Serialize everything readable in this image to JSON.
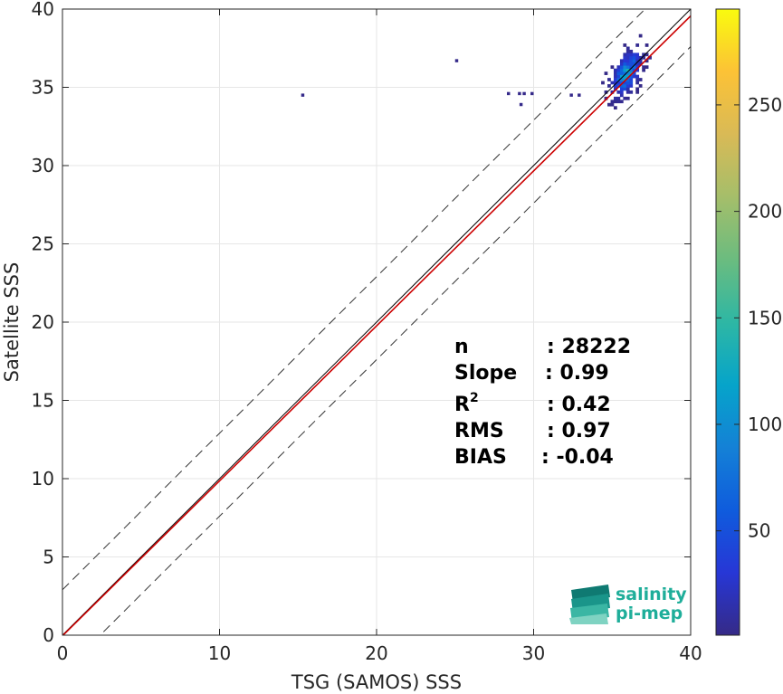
{
  "chart_data": {
    "type": "heatmap",
    "xlabel": "TSG (SAMOS) SSS",
    "ylabel": "Satellite SSS",
    "xlim": [
      0,
      40
    ],
    "ylim": [
      0,
      40
    ],
    "x_ticks": [
      "0",
      "10",
      "20",
      "30",
      "40"
    ],
    "y_ticks": [
      "0",
      "5",
      "10",
      "15",
      "20",
      "25",
      "30",
      "35",
      "40"
    ],
    "grid": true,
    "colorbar": {
      "range": [
        1,
        295
      ],
      "ticks": [
        "50",
        "100",
        "150",
        "200",
        "250"
      ],
      "tick_values": [
        50,
        100,
        150,
        200,
        250
      ],
      "colormap": "parula"
    },
    "lines": [
      {
        "kind": "one-to-one",
        "style": "solid",
        "color": "#000000",
        "slope": 1.0,
        "intercept": 0.0
      },
      {
        "kind": "regression",
        "style": "solid",
        "color": "#cc0000",
        "slope": 0.99,
        "intercept": -0.04
      },
      {
        "kind": "offset-upper",
        "style": "dashed",
        "color": "#333333",
        "slope": 1.0,
        "intercept": 2.9
      },
      {
        "kind": "offset-lower",
        "style": "dashed",
        "color": "#333333",
        "slope": 1.0,
        "intercept": -2.4
      }
    ],
    "density_cluster": {
      "x_range": [
        33.5,
        37.5
      ],
      "y_range": [
        30,
        38.5
      ],
      "peak_x": 35.8,
      "peak_y": 35.8
    },
    "outliers": [
      [
        15.2,
        34.4
      ],
      [
        25.0,
        36.6
      ],
      [
        28.3,
        34.5
      ],
      [
        29.0,
        34.5
      ],
      [
        29.3,
        34.5
      ],
      [
        29.8,
        34.5
      ],
      [
        29.1,
        33.8
      ],
      [
        32.3,
        34.4
      ],
      [
        32.8,
        34.4
      ]
    ],
    "stats": [
      {
        "label": "n",
        "value": ": 28222"
      },
      {
        "label": "Slope",
        "value": ": 0.99"
      },
      {
        "label": "R",
        "sup": "2",
        "value": ": 0.42"
      },
      {
        "label": "RMS",
        "value": ": 0.97"
      },
      {
        "label": "BIAS",
        "value": ": -0.04"
      }
    ]
  },
  "logo": {
    "line1": "salinity",
    "line2": "pi-mep"
  }
}
